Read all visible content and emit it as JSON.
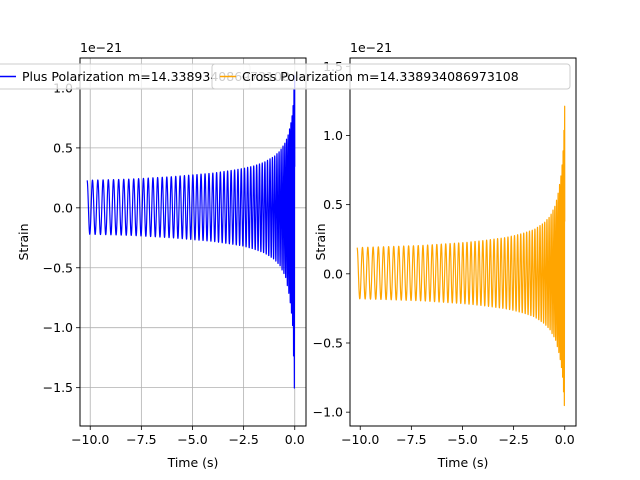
{
  "chart_data": [
    {
      "type": "line",
      "title": "",
      "xlabel": "Time (s)",
      "ylabel": "Strain",
      "offset_text": "1e−21",
      "xlim": [
        -10.5,
        0.55
      ],
      "ylim": [
        -1.82,
        1.25
      ],
      "xticks": [
        -10.0,
        -7.5,
        -5.0,
        -2.5,
        0.0
      ],
      "xtick_labels": [
        "−10.0",
        "−7.5",
        "−5.0",
        "−2.5",
        "0.0"
      ],
      "yticks": [
        -1.5,
        -1.0,
        -0.5,
        0.0,
        0.5,
        1.0
      ],
      "ytick_labels": [
        "−1.5",
        "−1.0",
        "−0.5",
        "0.0",
        "0.5",
        "1.0"
      ],
      "grid": true,
      "legend_position": "top-left",
      "color": "#0000ff",
      "series": [
        {
          "name": "Plus Polarization m=14.338934086973108",
          "x": [
            -10.15,
            -9.0,
            -8.0,
            -7.0,
            -6.0,
            -5.0,
            -4.0,
            -3.0,
            -2.5,
            -2.0,
            -1.5,
            -1.0,
            -0.7,
            -0.45,
            -0.3,
            -0.18,
            -0.1,
            -0.04,
            0.0
          ],
          "envelope_upper": [
            0.23,
            0.235,
            0.24,
            0.25,
            0.26,
            0.275,
            0.29,
            0.315,
            0.33,
            0.35,
            0.38,
            0.43,
            0.48,
            0.55,
            0.62,
            0.72,
            0.82,
            1.0,
            1.18
          ],
          "envelope_lower": [
            -0.22,
            -0.225,
            -0.23,
            -0.24,
            -0.25,
            -0.265,
            -0.28,
            -0.305,
            -0.32,
            -0.345,
            -0.375,
            -0.43,
            -0.49,
            -0.58,
            -0.7,
            -0.85,
            -1.0,
            -1.35,
            -1.68
          ]
        }
      ]
    },
    {
      "type": "line",
      "title": "",
      "xlabel": "Time (s)",
      "ylabel": "Strain",
      "offset_text": "1e−21",
      "xlim": [
        -10.5,
        0.55
      ],
      "ylim": [
        -1.1,
        1.56
      ],
      "xticks": [
        -10.0,
        -7.5,
        -5.0,
        -2.5,
        0.0
      ],
      "xtick_labels": [
        "−10.0",
        "−7.5",
        "−5.0",
        "−2.5",
        "0.0"
      ],
      "yticks": [
        -1.0,
        -0.5,
        0.0,
        0.5,
        1.0,
        1.5
      ],
      "ytick_labels": [
        "−1.0",
        "−0.5",
        "0.0",
        "0.5",
        "1.0",
        "1.5"
      ],
      "grid": false,
      "legend_position": "top-left",
      "color": "#ffa500",
      "series": [
        {
          "name": "Cross Polarization m=14.338934086973108",
          "x": [
            -10.15,
            -9.0,
            -8.0,
            -7.0,
            -6.0,
            -5.0,
            -4.0,
            -3.0,
            -2.5,
            -2.0,
            -1.5,
            -1.0,
            -0.7,
            -0.45,
            -0.3,
            -0.18,
            -0.1,
            -0.04,
            0.0
          ],
          "envelope_upper": [
            0.19,
            0.195,
            0.2,
            0.205,
            0.215,
            0.225,
            0.24,
            0.26,
            0.275,
            0.295,
            0.32,
            0.37,
            0.42,
            0.5,
            0.6,
            0.72,
            0.85,
            1.05,
            1.3
          ],
          "envelope_lower": [
            -0.18,
            -0.185,
            -0.19,
            -0.195,
            -0.205,
            -0.215,
            -0.23,
            -0.25,
            -0.265,
            -0.285,
            -0.31,
            -0.36,
            -0.41,
            -0.48,
            -0.56,
            -0.66,
            -0.76,
            -0.9,
            -1.02
          ]
        }
      ]
    }
  ]
}
